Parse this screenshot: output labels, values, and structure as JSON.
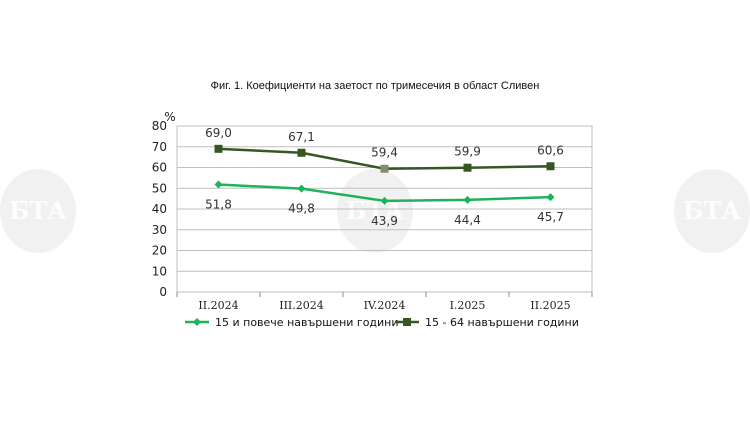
{
  "chart_data": {
    "type": "line",
    "title": "Фиг. 1. Коефициенти на заетост по тримесечия в област Сливен",
    "ylabel": "%",
    "xlabel": "",
    "ylim": [
      0,
      80
    ],
    "yticks": [
      0,
      10,
      20,
      30,
      40,
      50,
      60,
      70,
      80
    ],
    "grid": true,
    "legend_position": "bottom",
    "categories": [
      "II.2024",
      "III.2024",
      "IV.2024",
      "I.2025",
      "II.2025"
    ],
    "series": [
      {
        "name": "15 и повече навършени години",
        "values": [
          51.8,
          49.8,
          43.9,
          44.4,
          45.7
        ],
        "labels": [
          "51,8",
          "49,8",
          "43,9",
          "44,4",
          "45,7"
        ],
        "color": "#1db35b",
        "marker": "diamond",
        "label_position": "below"
      },
      {
        "name": "15 - 64 навършени години",
        "values": [
          69.0,
          67.1,
          59.4,
          59.9,
          60.6
        ],
        "labels": [
          "69,0",
          "67,1",
          "59,4",
          "59,9",
          "60,6"
        ],
        "color": "#375623",
        "marker": "square",
        "label_position": "above"
      }
    ]
  },
  "watermark": {
    "text": "БТА",
    "color": "#e6e6e6"
  }
}
